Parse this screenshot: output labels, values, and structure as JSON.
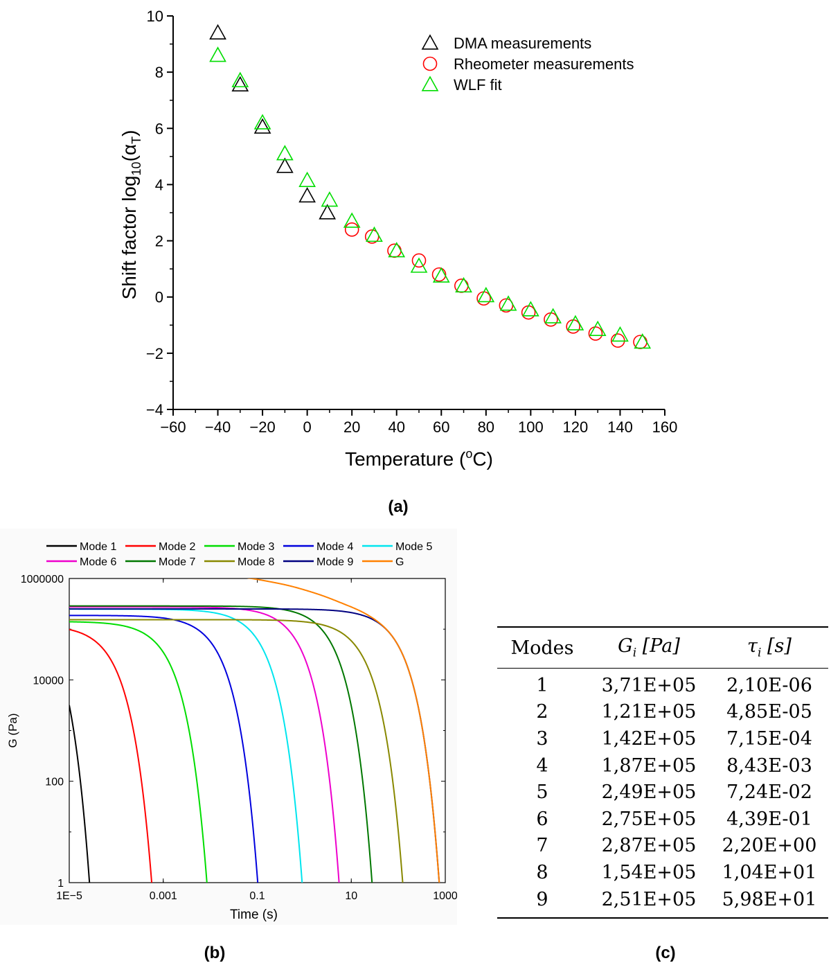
{
  "chart_data": [
    {
      "type": "scatter",
      "xlabel": "Temperature (oC)",
      "ylabel": "Shift factor log10(αT)",
      "xlim": [
        -60,
        160
      ],
      "ylim": [
        -4,
        10
      ],
      "xticks": [
        "−60",
        "−40",
        "−20",
        "0",
        "20",
        "40",
        "60",
        "80",
        "100",
        "120",
        "140",
        "160"
      ],
      "yticks": [
        "−4",
        "−2",
        "0",
        "2",
        "4",
        "6",
        "8",
        "10"
      ],
      "legend_position": "top-right",
      "series": [
        {
          "name": "DMA measurements",
          "marker": "triangle",
          "color": "#000000",
          "x": [
            -40,
            -30,
            -20,
            -10,
            0,
            9
          ],
          "y": [
            9.4,
            7.55,
            6.05,
            4.65,
            3.6,
            3.0
          ]
        },
        {
          "name": "Rheometer measurements",
          "marker": "circle",
          "color": "#ff0000",
          "x": [
            20,
            29,
            39,
            50,
            59,
            69,
            79,
            89,
            99,
            109,
            119,
            129,
            139,
            149
          ],
          "y": [
            2.4,
            2.15,
            1.65,
            1.3,
            0.8,
            0.4,
            -0.05,
            -0.3,
            -0.55,
            -0.8,
            -1.05,
            -1.3,
            -1.55,
            -1.6
          ]
        },
        {
          "name": "WLF fit",
          "marker": "triangle",
          "color": "#00dd00",
          "x": [
            -40,
            -30,
            -20,
            -10,
            0,
            10,
            20,
            30,
            40,
            50,
            60,
            70,
            80,
            90,
            100,
            110,
            120,
            130,
            140,
            150
          ],
          "y": [
            8.6,
            7.7,
            6.2,
            5.1,
            4.15,
            3.45,
            2.7,
            2.2,
            1.65,
            1.1,
            0.75,
            0.4,
            0.05,
            -0.25,
            -0.45,
            -0.7,
            -0.95,
            -1.15,
            -1.35,
            -1.6
          ]
        }
      ]
    },
    {
      "type": "line",
      "xlabel": "Time (s)",
      "ylabel": "G (Pa)",
      "xscale": "log",
      "yscale": "log",
      "xlim": [
        1e-05,
        1000
      ],
      "ylim": [
        1,
        1000000
      ],
      "xticks": [
        "1E−5",
        "0.001",
        "0.1",
        "10",
        "1000"
      ],
      "yticks": [
        "1",
        "100",
        "10000",
        "1000000"
      ],
      "legend_position": "top",
      "series": [
        {
          "name": "Mode 1",
          "color": "#000000",
          "G": 371000,
          "tau": 2.1e-06
        },
        {
          "name": "Mode 2",
          "color": "#ff0000",
          "G": 121000,
          "tau": 4.85e-05
        },
        {
          "name": "Mode 3",
          "color": "#00dd00",
          "G": 142000,
          "tau": 0.000715
        },
        {
          "name": "Mode 4",
          "color": "#0000dd",
          "G": 187000,
          "tau": 0.00843
        },
        {
          "name": "Mode 5",
          "color": "#00e5ee",
          "G": 249000,
          "tau": 0.0724
        },
        {
          "name": "Mode 6",
          "color": "#ee00cc",
          "G": 275000,
          "tau": 0.439
        },
        {
          "name": "Mode 7",
          "color": "#007700",
          "G": 287000,
          "tau": 2.2
        },
        {
          "name": "Mode 8",
          "color": "#888800",
          "G": 154000,
          "tau": 10.4
        },
        {
          "name": "Mode 9",
          "color": "#000080",
          "G": 251000,
          "tau": 59.8
        },
        {
          "name": "G",
          "color": "#ff8000",
          "sum": true
        }
      ]
    },
    {
      "type": "table",
      "columns": [
        "Modes",
        "Gi [Pa]",
        "τi [s]"
      ],
      "rows": [
        [
          "1",
          "3,71E+05",
          "2,10E-06"
        ],
        [
          "2",
          "1,21E+05",
          "4,85E-05"
        ],
        [
          "3",
          "1,42E+05",
          "7,15E-04"
        ],
        [
          "4",
          "1,87E+05",
          "8,43E-03"
        ],
        [
          "5",
          "2,49E+05",
          "7,24E-02"
        ],
        [
          "6",
          "2,75E+05",
          "4,39E-01"
        ],
        [
          "7",
          "2,87E+05",
          "2,20E+00"
        ],
        [
          "8",
          "1,54E+05",
          "1,04E+01"
        ],
        [
          "9",
          "2,51E+05",
          "5,98E+01"
        ]
      ]
    }
  ],
  "captions": {
    "a": "(a)",
    "b": "(b)",
    "c": "(c)"
  },
  "panel_a": {
    "ylabel_main": "Shift factor log",
    "ylabel_sub": "10",
    "ylabel_paren_open": "(α",
    "ylabel_sub2": "T",
    "ylabel_paren_close": ")",
    "xlabel_main": "Temperature (",
    "xlabel_sup": "o",
    "xlabel_end": "C)"
  },
  "table": {
    "h1": "Modes",
    "h2_var": "G",
    "h2_sub": "i",
    "h2_unit": "[Pa]",
    "h3_var": "τ",
    "h3_sub": "i",
    "h3_unit": "[s]"
  }
}
